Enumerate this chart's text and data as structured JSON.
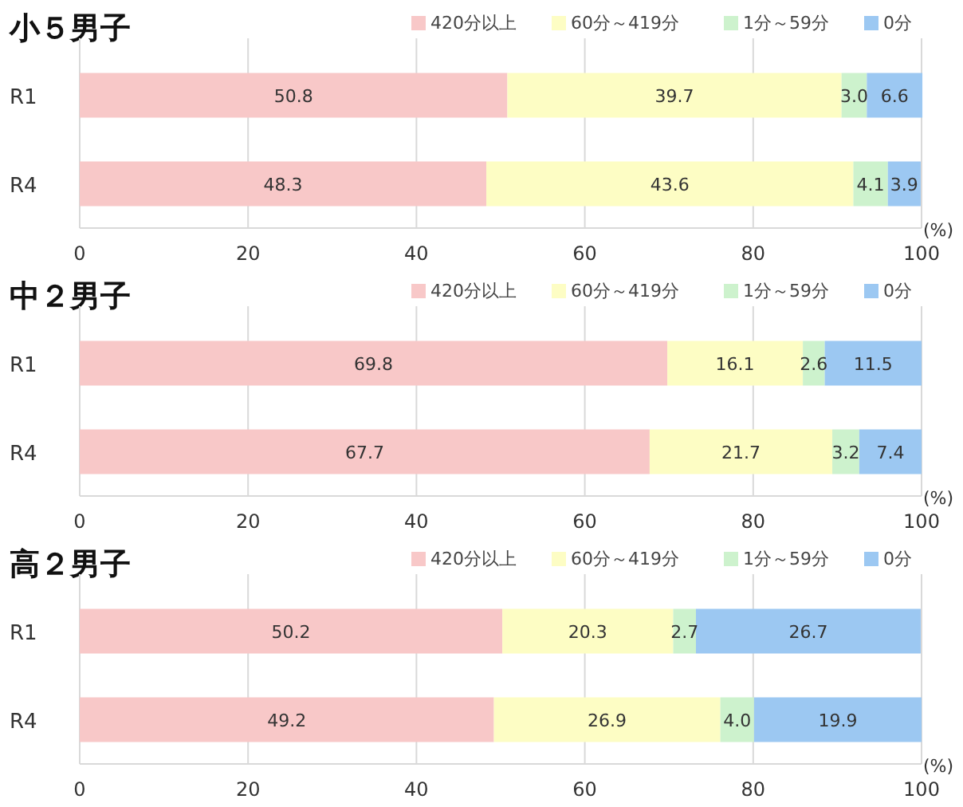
{
  "chart_data": [
    {
      "type": "bar",
      "title": "小５男子",
      "orientation": "horizontal",
      "stacked": true,
      "categories": [
        "R1",
        "R4"
      ],
      "series": [
        {
          "name": "420分以上",
          "color": "#f8c8c8",
          "values": [
            50.8,
            48.3
          ],
          "value_labels": [
            "50.8",
            "48.3"
          ]
        },
        {
          "name": "60分～419分",
          "color": "#fdfdc4",
          "values": [
            39.7,
            43.6
          ],
          "value_labels": [
            "39.7",
            "43.6"
          ]
        },
        {
          "name": "1分～59分",
          "color": "#cdf2cd",
          "values": [
            3.0,
            4.1
          ],
          "value_labels": [
            "3.0",
            "4.1"
          ]
        },
        {
          "name": "0分",
          "color": "#9cc8f2",
          "values": [
            6.6,
            3.9
          ],
          "value_labels": [
            "6.6",
            "3.9"
          ]
        }
      ],
      "xlim": [
        0,
        100
      ],
      "xticks": [
        0,
        20,
        40,
        60,
        80,
        100
      ],
      "xlabel": "(%)",
      "grid": "x",
      "legend": "top right"
    },
    {
      "type": "bar",
      "title": "中２男子",
      "orientation": "horizontal",
      "stacked": true,
      "categories": [
        "R1",
        "R4"
      ],
      "series": [
        {
          "name": "420分以上",
          "color": "#f8c8c8",
          "values": [
            69.8,
            67.7
          ],
          "value_labels": [
            "69.8",
            "67.7"
          ]
        },
        {
          "name": "60分～419分",
          "color": "#fdfdc4",
          "values": [
            16.1,
            21.7
          ],
          "value_labels": [
            "16.1",
            "21.7"
          ]
        },
        {
          "name": "1分～59分",
          "color": "#cdf2cd",
          "values": [
            2.6,
            3.2
          ],
          "value_labels": [
            "2.6",
            "3.2"
          ]
        },
        {
          "name": "0分",
          "color": "#9cc8f2",
          "values": [
            11.5,
            7.4
          ],
          "value_labels": [
            "11.5",
            "7.4"
          ]
        }
      ],
      "xlim": [
        0,
        100
      ],
      "xticks": [
        0,
        20,
        40,
        60,
        80,
        100
      ],
      "xlabel": "(%)",
      "grid": "x",
      "legend": "top right"
    },
    {
      "type": "bar",
      "title": "高２男子",
      "orientation": "horizontal",
      "stacked": true,
      "categories": [
        "R1",
        "R4"
      ],
      "series": [
        {
          "name": "420分以上",
          "color": "#f8c8c8",
          "values": [
            50.2,
            49.2
          ],
          "value_labels": [
            "50.2",
            "49.2"
          ]
        },
        {
          "name": "60分～419分",
          "color": "#fdfdc4",
          "values": [
            20.3,
            26.9
          ],
          "value_labels": [
            "20.3",
            "26.9"
          ]
        },
        {
          "name": "1分～59分",
          "color": "#cdf2cd",
          "values": [
            2.7,
            4.0
          ],
          "value_labels": [
            "2.7",
            "4.0"
          ]
        },
        {
          "name": "0分",
          "color": "#9cc8f2",
          "values": [
            26.7,
            19.9
          ],
          "value_labels": [
            "26.7",
            "19.9"
          ]
        }
      ],
      "xlim": [
        0,
        100
      ],
      "xticks": [
        0,
        20,
        40,
        60,
        80,
        100
      ],
      "xlabel": "(%)",
      "grid": "x",
      "legend": "top right"
    }
  ]
}
